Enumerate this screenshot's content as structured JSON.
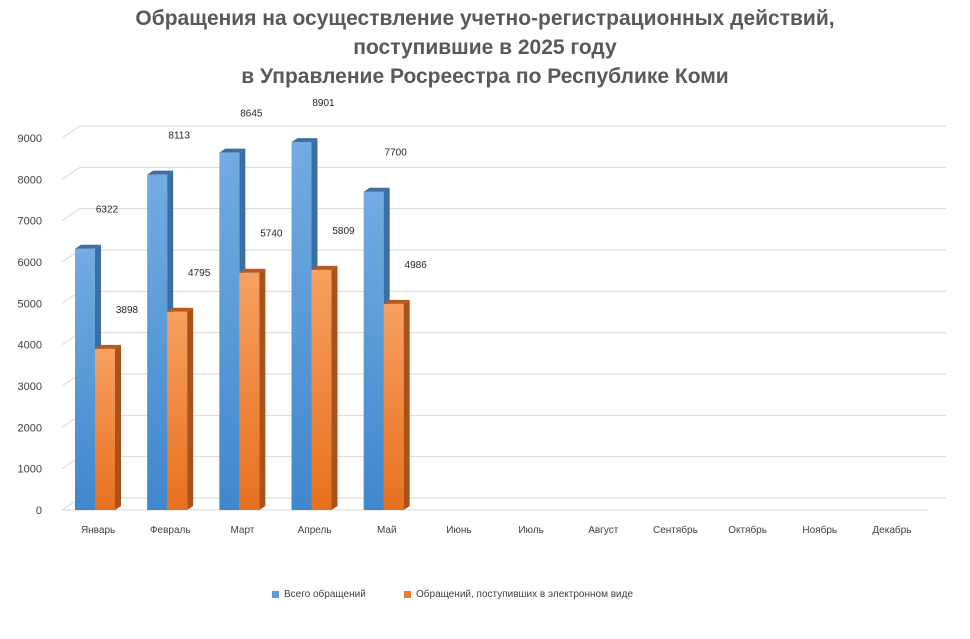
{
  "chart_data": {
    "type": "bar",
    "title": [
      "Обращения на осуществление учетно-регистрационных действий,",
      "поступившие в 2025 году",
      "в Управление Росреестра по Республике Коми"
    ],
    "categories": [
      "Январь",
      "Февраль",
      "Март",
      "Апрель",
      "Май",
      "Июнь",
      "Июль",
      "Август",
      "Сентябрь",
      "Октябрь",
      "Ноябрь",
      "Декабрь"
    ],
    "series": [
      {
        "name": "Всего обращений",
        "values": [
          6322,
          8113,
          8645,
          8901,
          7700,
          null,
          null,
          null,
          null,
          null,
          null,
          null
        ],
        "color": "#5B9BD5"
      },
      {
        "name": "Обращений, поступивших в электронном виде",
        "values": [
          3898,
          4795,
          5740,
          5809,
          4986,
          null,
          null,
          null,
          null,
          null,
          null,
          null
        ],
        "color": "#ED7D31"
      }
    ],
    "yticks": [
      0,
      1000,
      2000,
      3000,
      4000,
      5000,
      6000,
      7000,
      8000,
      9000
    ],
    "ylim": [
      0,
      9000
    ],
    "grid": true,
    "legend_position": "bottom",
    "style": "3d-column"
  }
}
